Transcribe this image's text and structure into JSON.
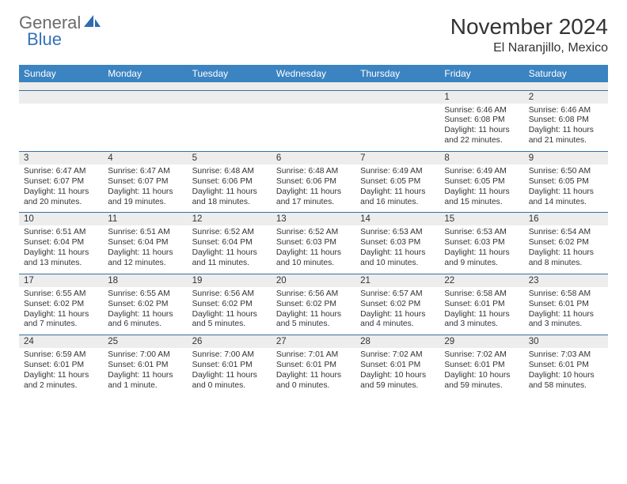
{
  "logo": {
    "text_general": "General",
    "text_blue": "Blue"
  },
  "title": {
    "month": "November 2024",
    "location": "El Naranjillo, Mexico"
  },
  "colors": {
    "header_bg": "#3b83c1",
    "header_text": "#ffffff",
    "daynum_bg": "#ededed",
    "row_divider": "#3b6fa0",
    "body_text": "#333333",
    "logo_blue": "#3572b9"
  },
  "weekdays": [
    "Sunday",
    "Monday",
    "Tuesday",
    "Wednesday",
    "Thursday",
    "Friday",
    "Saturday"
  ],
  "weeks": [
    [
      null,
      null,
      null,
      null,
      null,
      {
        "d": "1",
        "sr": "6:46 AM",
        "ss": "6:08 PM",
        "dl": "11 hours and 22 minutes."
      },
      {
        "d": "2",
        "sr": "6:46 AM",
        "ss": "6:08 PM",
        "dl": "11 hours and 21 minutes."
      }
    ],
    [
      {
        "d": "3",
        "sr": "6:47 AM",
        "ss": "6:07 PM",
        "dl": "11 hours and 20 minutes."
      },
      {
        "d": "4",
        "sr": "6:47 AM",
        "ss": "6:07 PM",
        "dl": "11 hours and 19 minutes."
      },
      {
        "d": "5",
        "sr": "6:48 AM",
        "ss": "6:06 PM",
        "dl": "11 hours and 18 minutes."
      },
      {
        "d": "6",
        "sr": "6:48 AM",
        "ss": "6:06 PM",
        "dl": "11 hours and 17 minutes."
      },
      {
        "d": "7",
        "sr": "6:49 AM",
        "ss": "6:05 PM",
        "dl": "11 hours and 16 minutes."
      },
      {
        "d": "8",
        "sr": "6:49 AM",
        "ss": "6:05 PM",
        "dl": "11 hours and 15 minutes."
      },
      {
        "d": "9",
        "sr": "6:50 AM",
        "ss": "6:05 PM",
        "dl": "11 hours and 14 minutes."
      }
    ],
    [
      {
        "d": "10",
        "sr": "6:51 AM",
        "ss": "6:04 PM",
        "dl": "11 hours and 13 minutes."
      },
      {
        "d": "11",
        "sr": "6:51 AM",
        "ss": "6:04 PM",
        "dl": "11 hours and 12 minutes."
      },
      {
        "d": "12",
        "sr": "6:52 AM",
        "ss": "6:04 PM",
        "dl": "11 hours and 11 minutes."
      },
      {
        "d": "13",
        "sr": "6:52 AM",
        "ss": "6:03 PM",
        "dl": "11 hours and 10 minutes."
      },
      {
        "d": "14",
        "sr": "6:53 AM",
        "ss": "6:03 PM",
        "dl": "11 hours and 10 minutes."
      },
      {
        "d": "15",
        "sr": "6:53 AM",
        "ss": "6:03 PM",
        "dl": "11 hours and 9 minutes."
      },
      {
        "d": "16",
        "sr": "6:54 AM",
        "ss": "6:02 PM",
        "dl": "11 hours and 8 minutes."
      }
    ],
    [
      {
        "d": "17",
        "sr": "6:55 AM",
        "ss": "6:02 PM",
        "dl": "11 hours and 7 minutes."
      },
      {
        "d": "18",
        "sr": "6:55 AM",
        "ss": "6:02 PM",
        "dl": "11 hours and 6 minutes."
      },
      {
        "d": "19",
        "sr": "6:56 AM",
        "ss": "6:02 PM",
        "dl": "11 hours and 5 minutes."
      },
      {
        "d": "20",
        "sr": "6:56 AM",
        "ss": "6:02 PM",
        "dl": "11 hours and 5 minutes."
      },
      {
        "d": "21",
        "sr": "6:57 AM",
        "ss": "6:02 PM",
        "dl": "11 hours and 4 minutes."
      },
      {
        "d": "22",
        "sr": "6:58 AM",
        "ss": "6:01 PM",
        "dl": "11 hours and 3 minutes."
      },
      {
        "d": "23",
        "sr": "6:58 AM",
        "ss": "6:01 PM",
        "dl": "11 hours and 3 minutes."
      }
    ],
    [
      {
        "d": "24",
        "sr": "6:59 AM",
        "ss": "6:01 PM",
        "dl": "11 hours and 2 minutes."
      },
      {
        "d": "25",
        "sr": "7:00 AM",
        "ss": "6:01 PM",
        "dl": "11 hours and 1 minute."
      },
      {
        "d": "26",
        "sr": "7:00 AM",
        "ss": "6:01 PM",
        "dl": "11 hours and 0 minutes."
      },
      {
        "d": "27",
        "sr": "7:01 AM",
        "ss": "6:01 PM",
        "dl": "11 hours and 0 minutes."
      },
      {
        "d": "28",
        "sr": "7:02 AM",
        "ss": "6:01 PM",
        "dl": "10 hours and 59 minutes."
      },
      {
        "d": "29",
        "sr": "7:02 AM",
        "ss": "6:01 PM",
        "dl": "10 hours and 59 minutes."
      },
      {
        "d": "30",
        "sr": "7:03 AM",
        "ss": "6:01 PM",
        "dl": "10 hours and 58 minutes."
      }
    ]
  ],
  "labels": {
    "sunrise": "Sunrise:",
    "sunset": "Sunset:",
    "daylight": "Daylight:"
  }
}
